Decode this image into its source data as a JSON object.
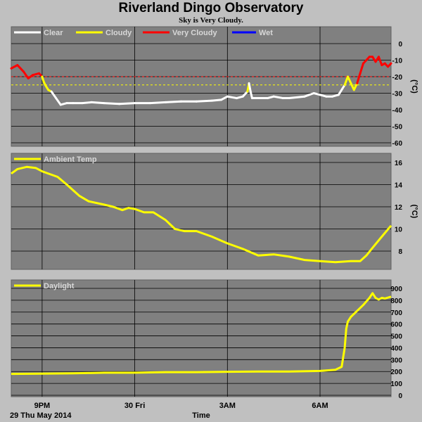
{
  "title": "Riverland Dingo Observatory",
  "subtitle": "Sky is Very Cloudy.",
  "x_axis": {
    "label": "Time",
    "date_label": "29 Thu May 2014",
    "ticks": [
      {
        "label": "9PM",
        "t": 0
      },
      {
        "label": "30 Fri",
        "t": 3
      },
      {
        "label": "3AM",
        "t": 6
      },
      {
        "label": "6AM",
        "t": 9
      }
    ],
    "range_hours_from_9pm": [
      -1.0,
      11.3
    ]
  },
  "colors": {
    "background": "#c0c0c0",
    "plot_bg": "#808080",
    "clear": "#ffffff",
    "cloudy": "#ffff00",
    "very_cloudy": "#ff0000",
    "wet": "#0000ff",
    "legend_text": "#d8d8d8"
  },
  "chart_data": [
    {
      "type": "line",
      "panel": "sky",
      "legend": [
        "Clear",
        "Cloudy",
        "Very Cloudy",
        "Wet"
      ],
      "ylabel": "(°C)",
      "ylim": [
        -60,
        0
      ],
      "yticks": [
        0,
        -10,
        -20,
        -30,
        -40,
        -50,
        -60
      ],
      "thresholds": [
        {
          "name": "very cloudy limit",
          "value": -20,
          "color": "#ff0000"
        },
        {
          "name": "cloudy limit",
          "value": -25,
          "color": "#ffff00"
        }
      ],
      "x_hours": [
        -1.0,
        -0.8,
        -0.6,
        -0.45,
        -0.3,
        -0.1,
        0.0,
        0.05,
        0.1,
        0.2,
        0.3,
        0.45,
        0.6,
        0.8,
        1.0,
        1.3,
        1.6,
        2.0,
        2.5,
        3.0,
        3.5,
        4.0,
        4.5,
        5.0,
        5.5,
        5.8,
        6.0,
        6.3,
        6.5,
        6.65,
        6.7,
        6.75,
        6.8,
        7.0,
        7.3,
        7.5,
        7.8,
        8.0,
        8.5,
        8.8,
        9.0,
        9.2,
        9.4,
        9.6,
        9.8,
        9.9,
        10.0,
        10.1,
        10.2,
        10.3,
        10.4,
        10.5,
        10.6,
        10.7,
        10.8,
        10.9,
        11.0,
        11.1,
        11.2,
        11.3
      ],
      "y": [
        -15,
        -13,
        -17,
        -21,
        -19,
        -18,
        -20,
        -23,
        -25,
        -28,
        -29,
        -33,
        -37,
        -36,
        -36,
        -36,
        -35.5,
        -36,
        -36.5,
        -36,
        -36,
        -35.5,
        -35,
        -35,
        -34.5,
        -34,
        -32,
        -33,
        -32,
        -29,
        -24,
        -29,
        -33,
        -33,
        -33,
        -32,
        -33,
        -33,
        -32,
        -30,
        -31,
        -32,
        -32,
        -31,
        -25,
        -20,
        -24,
        -28,
        -24,
        -18,
        -12,
        -10,
        -8,
        -8,
        -11,
        -8,
        -13,
        -12,
        -14,
        -12
      ],
      "state": [
        "very_cloudy",
        "very_cloudy",
        "very_cloudy",
        "very_cloudy",
        "very_cloudy",
        "very_cloudy",
        "very_cloudy",
        "cloudy",
        "cloudy",
        "cloudy",
        "cloudy",
        "clear",
        "clear",
        "clear",
        "clear",
        "clear",
        "clear",
        "clear",
        "clear",
        "clear",
        "clear",
        "clear",
        "clear",
        "clear",
        "clear",
        "clear",
        "clear",
        "clear",
        "clear",
        "clear",
        "cloudy",
        "clear",
        "clear",
        "clear",
        "clear",
        "clear",
        "clear",
        "clear",
        "clear",
        "clear",
        "clear",
        "clear",
        "clear",
        "clear",
        "clear",
        "cloudy",
        "cloudy",
        "cloudy",
        "cloudy",
        "very_cloudy",
        "very_cloudy",
        "very_cloudy",
        "very_cloudy",
        "very_cloudy",
        "very_cloudy",
        "very_cloudy",
        "very_cloudy",
        "very_cloudy",
        "very_cloudy",
        "very_cloudy"
      ]
    },
    {
      "type": "line",
      "panel": "ambient",
      "legend": [
        "Ambient Temp"
      ],
      "ylabel": "(°C)",
      "ylim": [
        6.5,
        16.5
      ],
      "yticks": [
        16,
        14,
        12,
        10,
        8
      ],
      "x_hours": [
        -1.0,
        -0.8,
        -0.5,
        -0.2,
        0.0,
        0.5,
        0.8,
        1.2,
        1.5,
        2.0,
        2.3,
        2.6,
        2.8,
        3.0,
        3.3,
        3.6,
        4.0,
        4.3,
        4.6,
        5.0,
        5.5,
        6.0,
        6.5,
        7.0,
        7.5,
        8.0,
        8.5,
        9.0,
        9.5,
        10.0,
        10.3,
        10.5,
        10.7,
        11.0,
        11.3
      ],
      "y": [
        15.0,
        15.4,
        15.6,
        15.5,
        15.2,
        14.7,
        14.0,
        13.0,
        12.5,
        12.2,
        12.0,
        11.7,
        11.9,
        11.8,
        11.5,
        11.5,
        10.8,
        10.0,
        9.8,
        9.8,
        9.3,
        8.7,
        8.2,
        7.6,
        7.7,
        7.5,
        7.2,
        7.1,
        7.0,
        7.1,
        7.1,
        7.6,
        8.3,
        9.3,
        10.3
      ]
    },
    {
      "type": "line",
      "panel": "daylight",
      "legend": [
        "Daylight"
      ],
      "ylim": [
        0,
        900
      ],
      "yticks": [
        900,
        800,
        700,
        600,
        500,
        400,
        300,
        200,
        100,
        0
      ],
      "x_hours": [
        -1.0,
        0.0,
        1.0,
        2.0,
        3.0,
        4.0,
        5.0,
        6.0,
        7.0,
        8.0,
        9.0,
        9.5,
        9.7,
        9.8,
        9.85,
        9.9,
        10.0,
        10.2,
        10.4,
        10.6,
        10.7,
        10.8,
        10.9,
        11.0,
        11.1,
        11.3
      ],
      "y": [
        180,
        182,
        185,
        190,
        190,
        195,
        195,
        198,
        200,
        200,
        205,
        215,
        240,
        400,
        560,
        620,
        660,
        710,
        760,
        820,
        860,
        820,
        805,
        820,
        815,
        830
      ]
    }
  ]
}
